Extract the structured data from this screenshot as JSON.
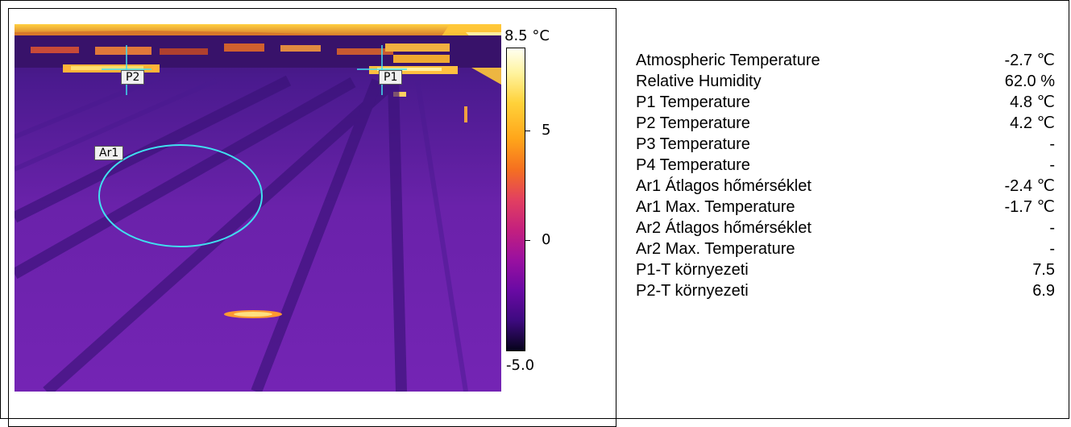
{
  "colorbar": {
    "max_label": "8.5 °C",
    "tick_5": "5",
    "tick_0": "0",
    "min_label": "-5.0"
  },
  "markers": {
    "p1": "P1",
    "p2": "P2",
    "ar1": "Ar1"
  },
  "readings": [
    {
      "label": "Atmospheric Temperature",
      "value": "-2.7 ℃"
    },
    {
      "label": "Relative Humidity",
      "value": "62.0 %"
    },
    {
      "label": "P1 Temperature",
      "value": "4.8 ℃"
    },
    {
      "label": "P2 Temperature",
      "value": "4.2 ℃"
    },
    {
      "label": "P3 Temperature",
      "value": "-"
    },
    {
      "label": "P4 Temperature",
      "value": "-"
    },
    {
      "label": "Ar1 Átlagos hőmérséklet",
      "value": "-2.4 ℃"
    },
    {
      "label": "Ar1 Max. Temperature",
      "value": "-1.7 ℃"
    },
    {
      "label": "Ar2 Átlagos hőmérséklet",
      "value": "-"
    },
    {
      "label": "Ar2 Max. Temperature",
      "value": "-"
    },
    {
      "label": "P1-T környezeti",
      "value": "7.5"
    },
    {
      "label": "P2-T környezeti",
      "value": "6.9"
    }
  ],
  "colors": {
    "cursor": "#40e0f0",
    "roof_base": "#5a1ea0",
    "hot": "#ffe060"
  }
}
